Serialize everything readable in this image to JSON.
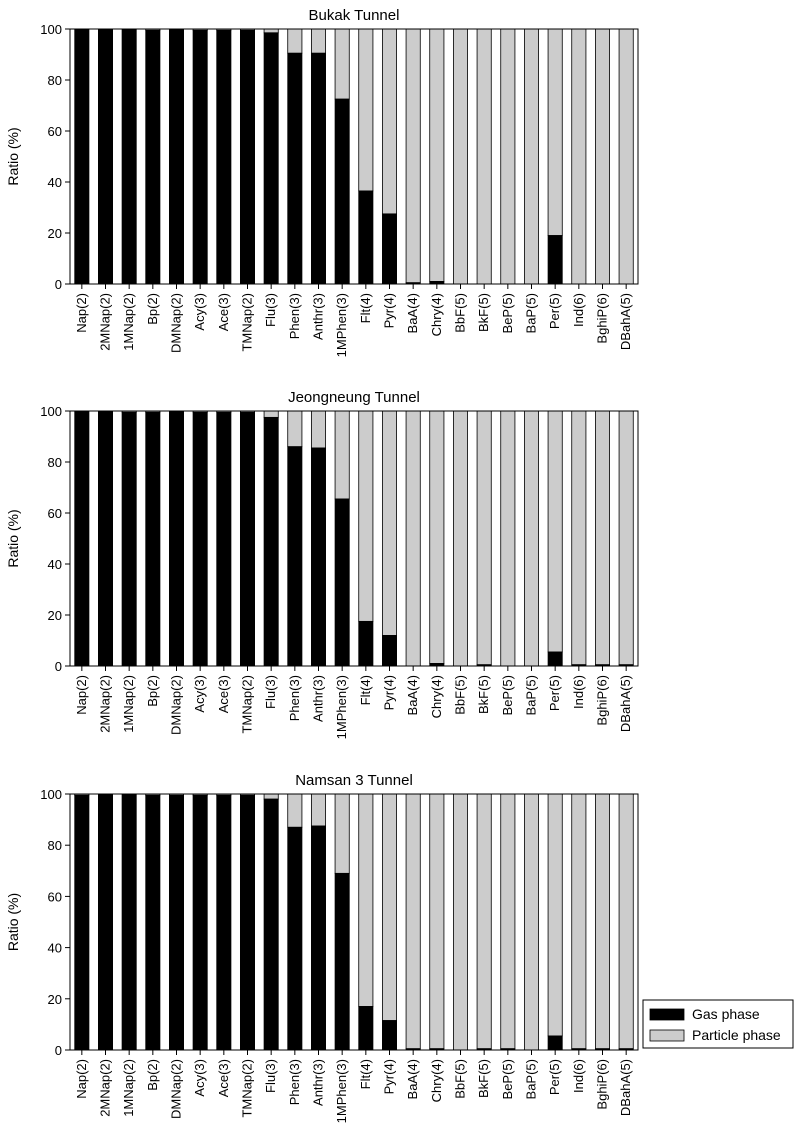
{
  "chart_data": [
    {
      "type": "bar",
      "stacked": true,
      "title": "Bukak Tunnel",
      "ylabel": "Ratio (%)",
      "ylim": [
        0,
        100
      ],
      "yticks": [
        0,
        20,
        40,
        60,
        80,
        100
      ],
      "grid": false,
      "categories": [
        "Nap(2)",
        "2MNap(2)",
        "1MNap(2)",
        "Bp(2)",
        "DMNap(2)",
        "Acy(3)",
        "Ace(3)",
        "TMNap(2)",
        "Flu(3)",
        "Phen(3)",
        "Anthr(3)",
        "1MPhen(3)",
        "Flt(4)",
        "Pyr(4)",
        "BaA(4)",
        "Chry(4)",
        "BbF(5)",
        "BkF(5)",
        "BeP(5)",
        "BaP(5)",
        "Per(5)",
        "Ind(6)",
        "BghiP(6)",
        "DBahA(5)"
      ],
      "series": [
        {
          "name": "Gas phase",
          "color": "#000000",
          "values": [
            100,
            100,
            100,
            99.5,
            100,
            99.5,
            99.5,
            99.5,
            98.5,
            90.5,
            90.5,
            72.5,
            36.5,
            27.5,
            0.5,
            1,
            0,
            0,
            0,
            0,
            19,
            0,
            0,
            0
          ]
        },
        {
          "name": "Particle phase",
          "color": "#cccccc",
          "values": [
            0,
            0,
            0,
            0.5,
            0,
            0.5,
            0.5,
            0.5,
            1.5,
            9.5,
            9.5,
            27.5,
            63.5,
            72.5,
            99.5,
            99,
            100,
            100,
            100,
            100,
            81,
            100,
            100,
            100
          ]
        }
      ]
    },
    {
      "type": "bar",
      "stacked": true,
      "title": "Jeongneung Tunnel",
      "ylabel": "Ratio (%)",
      "ylim": [
        0,
        100
      ],
      "yticks": [
        0,
        20,
        40,
        60,
        80,
        100
      ],
      "grid": false,
      "categories": [
        "Nap(2)",
        "2MNap(2)",
        "1MNap(2)",
        "Bp(2)",
        "DMNap(2)",
        "Acy(3)",
        "Ace(3)",
        "TMNap(2)",
        "Flu(3)",
        "Phen(3)",
        "Anthr(3)",
        "1MPhen(3)",
        "Flt(4)",
        "Pyr(4)",
        "BaA(4)",
        "Chry(4)",
        "BbF(5)",
        "BkF(5)",
        "BeP(5)",
        "BaP(5)",
        "Per(5)",
        "Ind(6)",
        "BghiP(6)",
        "DBahA(5)"
      ],
      "series": [
        {
          "name": "Gas phase",
          "color": "#000000",
          "values": [
            100,
            100,
            99.5,
            99.5,
            100,
            99.5,
            99.5,
            99.5,
            97.5,
            86,
            85.5,
            65.5,
            17.5,
            12,
            0,
            1,
            0,
            0.5,
            0,
            0,
            5.5,
            0.5,
            0.5,
            0.5
          ]
        },
        {
          "name": "Particle phase",
          "color": "#cccccc",
          "values": [
            0,
            0,
            0.5,
            0.5,
            0,
            0.5,
            0.5,
            0.5,
            2.5,
            14,
            14.5,
            34.5,
            82.5,
            88,
            100,
            99,
            100,
            99.5,
            100,
            100,
            94.5,
            99.5,
            99.5,
            99.5
          ]
        }
      ]
    },
    {
      "type": "bar",
      "stacked": true,
      "title": "Namsan 3 Tunnel",
      "ylabel": "Ratio (%)",
      "ylim": [
        0,
        100
      ],
      "yticks": [
        0,
        20,
        40,
        60,
        80,
        100
      ],
      "grid": false,
      "legend_position": "right",
      "categories": [
        "Nap(2)",
        "2MNap(2)",
        "1MNap(2)",
        "Bp(2)",
        "DMNap(2)",
        "Acy(3)",
        "Ace(3)",
        "TMNap(2)",
        "Flu(3)",
        "Phen(3)",
        "Anthr(3)",
        "1MPhen(3)",
        "Flt(4)",
        "Pyr(4)",
        "BaA(4)",
        "Chry(4)",
        "BbF(5)",
        "BkF(5)",
        "BeP(5)",
        "BaP(5)",
        "Per(5)",
        "Ind(6)",
        "BghiP(6)",
        "DBahA(5)"
      ],
      "series": [
        {
          "name": "Gas phase",
          "color": "#000000",
          "values": [
            99.5,
            100,
            100,
            99.5,
            99.5,
            99.5,
            99.5,
            99.5,
            98,
            87,
            87.5,
            69,
            17,
            11.5,
            0.5,
            0.5,
            0,
            0.5,
            0.5,
            0,
            5.5,
            0.5,
            0.5,
            0.5
          ]
        },
        {
          "name": "Particle phase",
          "color": "#cccccc",
          "values": [
            0.5,
            0,
            0,
            0.5,
            0.5,
            0.5,
            0.5,
            0.5,
            2,
            13,
            12.5,
            31,
            83,
            88.5,
            99.5,
            99.5,
            100,
            99.5,
            99.5,
            100,
            94.5,
            99.5,
            99.5,
            99.5
          ]
        }
      ]
    }
  ],
  "legend": {
    "items": [
      {
        "label": "Gas phase",
        "color": "#000000"
      },
      {
        "label": "Particle phase",
        "color": "#cccccc"
      }
    ]
  }
}
